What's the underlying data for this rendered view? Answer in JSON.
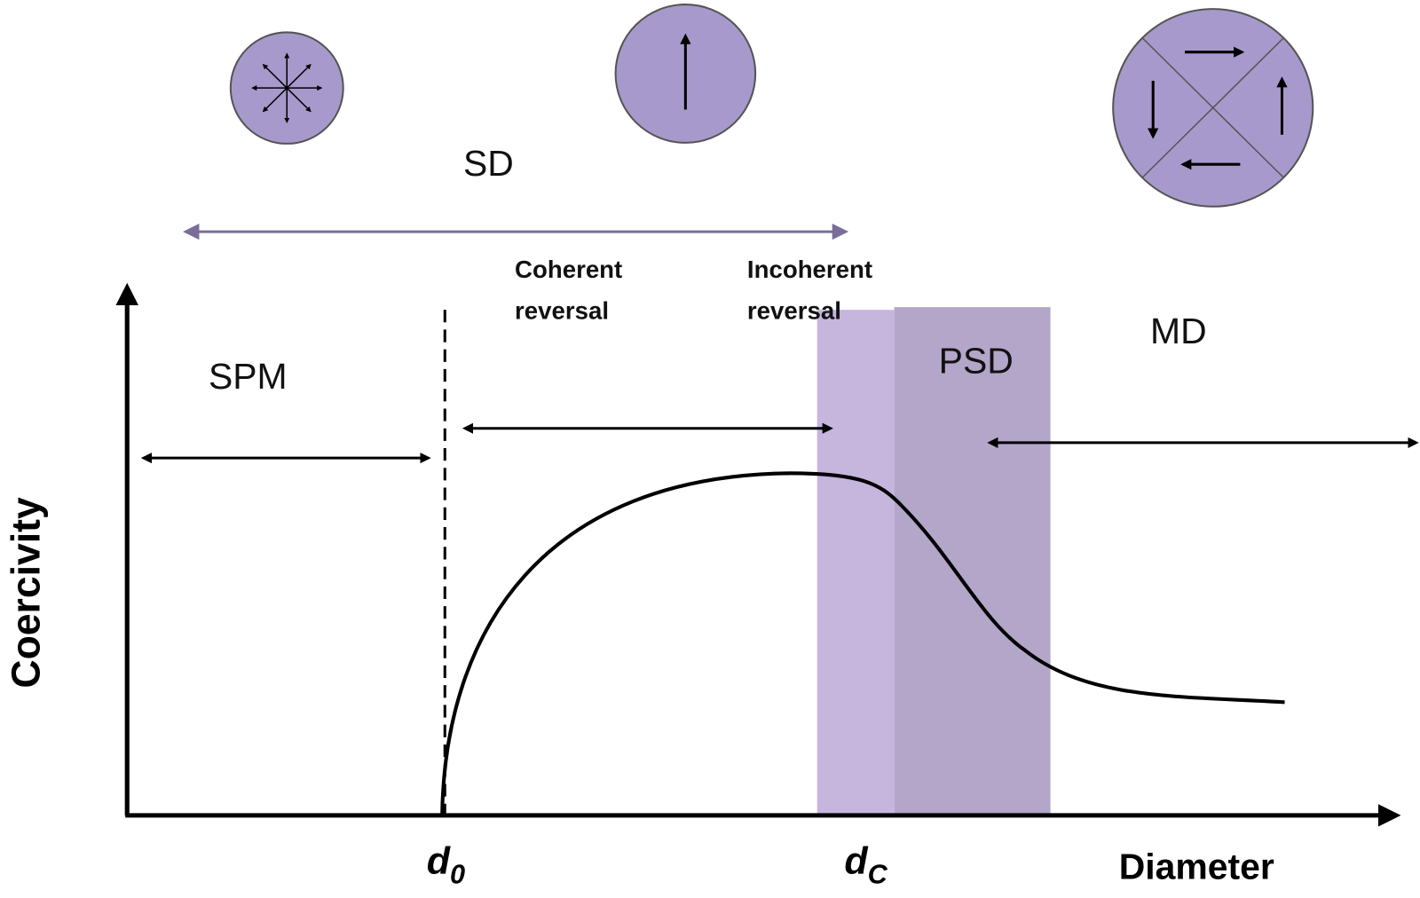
{
  "diagram": {
    "regions": {
      "sd": "SD",
      "spm": "SPM",
      "psd": "PSD",
      "md": "MD"
    },
    "modes": {
      "coherent": [
        "Coherent",
        "reversal"
      ],
      "incoherent": [
        "Incoherent",
        "reversal"
      ]
    },
    "axes": {
      "y_label": "Coercivity",
      "x_label": "Diameter"
    },
    "markers": {
      "d0": {
        "main": "d",
        "sub": "0"
      },
      "dc": {
        "main": "d",
        "sub": "C"
      }
    }
  }
}
